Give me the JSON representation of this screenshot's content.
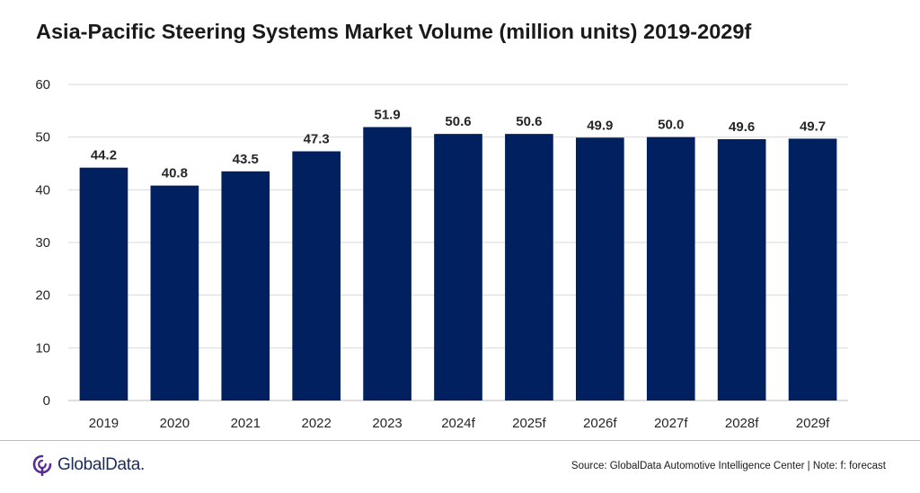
{
  "header": {
    "title": "Asia-Pacific Steering Systems Market Volume (million units) 2019-2029f"
  },
  "footer": {
    "logo_text": "GlobalData.",
    "source": "Source: GlobalData Automotive Intelligence Center | Note: f: forecast"
  },
  "colors": {
    "bar": "#002060",
    "grid": "#d9d9d9",
    "axis": "#bfbfbf",
    "text": "#262626",
    "logo": "#5b2c8f"
  },
  "chart_data": {
    "type": "bar",
    "title": "Asia-Pacific Steering Systems Market Volume (million units) 2019-2029f",
    "xlabel": "",
    "ylabel": "",
    "categories": [
      "2019",
      "2020",
      "2021",
      "2022",
      "2023",
      "2024f",
      "2025f",
      "2026f",
      "2027f",
      "2028f",
      "2029f"
    ],
    "values": [
      44.2,
      40.8,
      43.5,
      47.3,
      51.9,
      50.6,
      50.6,
      49.9,
      50.0,
      49.6,
      49.7
    ],
    "data_labels": [
      "44.2",
      "40.8",
      "43.5",
      "47.3",
      "51.9",
      "50.6",
      "50.6",
      "49.9",
      "50.0",
      "49.6",
      "49.7"
    ],
    "ylim": [
      0,
      60
    ],
    "yticks": [
      "0",
      "10",
      "20",
      "30",
      "40",
      "50",
      "60"
    ],
    "ytick_values": [
      0,
      10,
      20,
      30,
      40,
      50,
      60
    ],
    "grid": true,
    "legend": "none"
  }
}
